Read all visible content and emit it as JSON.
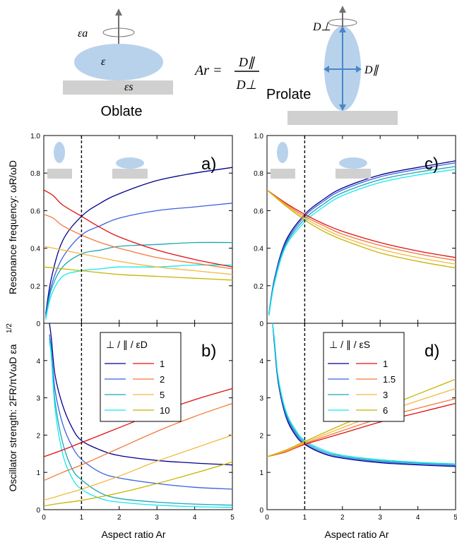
{
  "colors": {
    "spheroid": "#b8d2ec",
    "substrate": "#d0d0d0",
    "arrow": "#4a86c8",
    "axis": "#000000",
    "perp": [
      "#00008b",
      "#3a60e0",
      "#1aa6b4",
      "#16e8f0"
    ],
    "par": [
      "#e01010",
      "#f37838",
      "#f5b840",
      "#c8b400"
    ]
  },
  "schematic": {
    "oblate": {
      "label": "Oblate",
      "eps_a": "εa",
      "eps": "ε",
      "eps_s": "εs"
    },
    "prolate": {
      "label": "Prolate",
      "d_perp": "D⊥",
      "d_par": "D∥"
    },
    "equation": {
      "lhs": "Ar =",
      "numerator": "D∥",
      "denominator": "D⊥"
    }
  },
  "axes": {
    "top_ylabel": "Resonance frequency: ωR/ωD",
    "bottom_ylabel": "Oscillator strength: 2FR/πVωD εa",
    "bottom_ylabel_sup": "1/2",
    "xlabel": "Aspect ratio Ar",
    "top_yticks": [
      "0",
      "0.2",
      "0.4",
      "0.6",
      "0.8",
      "1.0"
    ],
    "bottom_yticks": [
      "0",
      "1",
      "2",
      "3",
      "4"
    ],
    "xticks": [
      "0",
      "1",
      "2",
      "3",
      "4",
      "5"
    ]
  },
  "legend_b": {
    "title": "⊥ / ∥ / εD",
    "entries": [
      "1",
      "2",
      "5",
      "10"
    ]
  },
  "legend_d": {
    "title": "⊥ / ∥ / εS",
    "entries": [
      "1",
      "1.5",
      "3",
      "6"
    ]
  },
  "chart_data": [
    {
      "panel": "a)",
      "type": "line",
      "xlim": [
        0,
        5
      ],
      "ylim": [
        0,
        1.0
      ],
      "vline_x": 1,
      "series": [
        {
          "group": "perp",
          "idx": 0,
          "x": [
            0.05,
            0.2,
            0.5,
            1,
            1.5,
            2,
            3,
            4,
            5
          ],
          "y": [
            0.05,
            0.24,
            0.44,
            0.57,
            0.64,
            0.69,
            0.76,
            0.8,
            0.83
          ]
        },
        {
          "group": "perp",
          "idx": 1,
          "x": [
            0.05,
            0.2,
            0.5,
            1,
            1.5,
            2,
            3,
            4,
            5
          ],
          "y": [
            0.04,
            0.2,
            0.35,
            0.47,
            0.52,
            0.56,
            0.6,
            0.62,
            0.64
          ]
        },
        {
          "group": "perp",
          "idx": 2,
          "x": [
            0.05,
            0.2,
            0.5,
            1,
            1.5,
            2,
            3,
            4,
            5
          ],
          "y": [
            0.03,
            0.18,
            0.3,
            0.37,
            0.39,
            0.41,
            0.42,
            0.43,
            0.43
          ]
        },
        {
          "group": "perp",
          "idx": 3,
          "x": [
            0.05,
            0.2,
            0.5,
            1,
            1.5,
            2,
            3,
            4,
            5
          ],
          "y": [
            0.02,
            0.15,
            0.25,
            0.28,
            0.29,
            0.3,
            0.3,
            0.31,
            0.31
          ]
        },
        {
          "group": "par",
          "idx": 0,
          "x": [
            0,
            0.25,
            0.5,
            1,
            1.5,
            2,
            3,
            4,
            5
          ],
          "y": [
            0.71,
            0.68,
            0.63,
            0.57,
            0.51,
            0.46,
            0.39,
            0.34,
            0.3
          ]
        },
        {
          "group": "par",
          "idx": 1,
          "x": [
            0,
            0.25,
            0.5,
            1,
            1.5,
            2,
            3,
            4,
            5
          ],
          "y": [
            0.58,
            0.56,
            0.52,
            0.47,
            0.43,
            0.4,
            0.35,
            0.32,
            0.29
          ]
        },
        {
          "group": "par",
          "idx": 2,
          "x": [
            0,
            0.5,
            1,
            2,
            3,
            4,
            5
          ],
          "y": [
            0.41,
            0.39,
            0.37,
            0.33,
            0.3,
            0.28,
            0.26
          ]
        },
        {
          "group": "par",
          "idx": 3,
          "x": [
            0,
            1,
            2,
            3,
            4,
            5
          ],
          "y": [
            0.3,
            0.28,
            0.26,
            0.25,
            0.24,
            0.23
          ]
        }
      ]
    },
    {
      "panel": "b)",
      "type": "line",
      "xlim": [
        0,
        5
      ],
      "ylim": [
        0,
        5
      ],
      "vline_x": 1,
      "series": [
        {
          "group": "perp",
          "idx": 0,
          "x": [
            0.15,
            0.2,
            0.3,
            0.5,
            0.75,
            1,
            1.5,
            2,
            3,
            4,
            5
          ],
          "y": [
            5.0,
            4.6,
            3.6,
            2.8,
            2.2,
            1.85,
            1.6,
            1.45,
            1.32,
            1.25,
            1.2
          ]
        },
        {
          "group": "perp",
          "idx": 1,
          "x": [
            0.15,
            0.2,
            0.3,
            0.5,
            0.75,
            1,
            1.5,
            2,
            3,
            4,
            5
          ],
          "y": [
            4.7,
            4.3,
            3.2,
            2.3,
            1.7,
            1.35,
            1.0,
            0.85,
            0.7,
            0.6,
            0.55
          ]
        },
        {
          "group": "perp",
          "idx": 2,
          "x": [
            0.15,
            0.2,
            0.3,
            0.5,
            0.75,
            1,
            1.5,
            2,
            3,
            4,
            5
          ],
          "y": [
            4.6,
            4.2,
            2.9,
            1.8,
            1.1,
            0.8,
            0.45,
            0.3,
            0.2,
            0.15,
            0.12
          ]
        },
        {
          "group": "perp",
          "idx": 3,
          "x": [
            0.15,
            0.2,
            0.3,
            0.5,
            0.75,
            1,
            1.5,
            2,
            3,
            4,
            5
          ],
          "y": [
            4.5,
            4.1,
            2.7,
            1.5,
            0.85,
            0.55,
            0.3,
            0.2,
            0.12,
            0.08,
            0.06
          ]
        },
        {
          "group": "par",
          "idx": 0,
          "x": [
            0,
            0.5,
            1,
            2,
            3,
            4,
            5
          ],
          "y": [
            1.42,
            1.6,
            1.8,
            2.2,
            2.6,
            2.95,
            3.25
          ]
        },
        {
          "group": "par",
          "idx": 1,
          "x": [
            0,
            0.5,
            1,
            2,
            3,
            4,
            5
          ],
          "y": [
            0.78,
            1.0,
            1.2,
            1.65,
            2.1,
            2.5,
            2.85
          ]
        },
        {
          "group": "par",
          "idx": 2,
          "x": [
            0,
            0.5,
            1,
            2,
            3,
            4,
            5
          ],
          "y": [
            0.25,
            0.4,
            0.55,
            0.9,
            1.3,
            1.65,
            2.0
          ]
        },
        {
          "group": "par",
          "idx": 3,
          "x": [
            0,
            0.5,
            1,
            2,
            3,
            4,
            5
          ],
          "y": [
            0.1,
            0.18,
            0.25,
            0.45,
            0.7,
            0.98,
            1.28
          ]
        }
      ]
    },
    {
      "panel": "c)",
      "type": "line",
      "xlim": [
        0,
        5
      ],
      "ylim": [
        0,
        1.0
      ],
      "vline_x": 1,
      "series": [
        {
          "group": "perp",
          "idx": 0,
          "x": [
            0.05,
            0.2,
            0.5,
            1,
            1.5,
            2,
            3,
            4,
            5
          ],
          "y": [
            0.05,
            0.24,
            0.44,
            0.58,
            0.66,
            0.72,
            0.79,
            0.83,
            0.865
          ]
        },
        {
          "group": "perp",
          "idx": 1,
          "x": [
            0.05,
            0.2,
            0.5,
            1,
            1.5,
            2,
            3,
            4,
            5
          ],
          "y": [
            0.05,
            0.235,
            0.43,
            0.57,
            0.65,
            0.71,
            0.78,
            0.82,
            0.855
          ]
        },
        {
          "group": "perp",
          "idx": 2,
          "x": [
            0.05,
            0.2,
            0.5,
            1,
            1.5,
            2,
            3,
            4,
            5
          ],
          "y": [
            0.045,
            0.225,
            0.42,
            0.555,
            0.635,
            0.695,
            0.765,
            0.805,
            0.835
          ]
        },
        {
          "group": "perp",
          "idx": 3,
          "x": [
            0.05,
            0.2,
            0.5,
            1,
            1.5,
            2,
            3,
            4,
            5
          ],
          "y": [
            0.04,
            0.215,
            0.41,
            0.54,
            0.62,
            0.68,
            0.75,
            0.79,
            0.82
          ]
        },
        {
          "group": "par",
          "idx": 0,
          "x": [
            0,
            0.5,
            1,
            1.5,
            2,
            3,
            4,
            5
          ],
          "y": [
            0.71,
            0.64,
            0.58,
            0.53,
            0.49,
            0.43,
            0.385,
            0.35
          ]
        },
        {
          "group": "par",
          "idx": 1,
          "x": [
            0,
            0.5,
            1,
            1.5,
            2,
            3,
            4,
            5
          ],
          "y": [
            0.71,
            0.635,
            0.57,
            0.52,
            0.475,
            0.415,
            0.37,
            0.335
          ]
        },
        {
          "group": "par",
          "idx": 2,
          "x": [
            0,
            0.5,
            1,
            1.5,
            2,
            3,
            4,
            5
          ],
          "y": [
            0.71,
            0.63,
            0.56,
            0.505,
            0.46,
            0.395,
            0.35,
            0.315
          ]
        },
        {
          "group": "par",
          "idx": 3,
          "x": [
            0,
            0.5,
            1,
            1.5,
            2,
            3,
            4,
            5
          ],
          "y": [
            0.71,
            0.625,
            0.55,
            0.49,
            0.445,
            0.375,
            0.33,
            0.295
          ]
        }
      ]
    },
    {
      "panel": "d)",
      "type": "line",
      "xlim": [
        0,
        5
      ],
      "ylim": [
        0,
        5
      ],
      "vline_x": 1,
      "series": [
        {
          "group": "perp",
          "idx": 0,
          "x": [
            0.15,
            0.2,
            0.3,
            0.5,
            0.75,
            1,
            1.5,
            2,
            3,
            4,
            5
          ],
          "y": [
            5.0,
            4.4,
            3.4,
            2.5,
            2.0,
            1.75,
            1.5,
            1.38,
            1.26,
            1.2,
            1.16
          ]
        },
        {
          "group": "perp",
          "idx": 1,
          "x": [
            0.15,
            0.2,
            0.3,
            0.5,
            0.75,
            1,
            1.5,
            2,
            3,
            4,
            5
          ],
          "y": [
            5.0,
            4.45,
            3.45,
            2.55,
            2.05,
            1.78,
            1.52,
            1.4,
            1.28,
            1.22,
            1.18
          ]
        },
        {
          "group": "perp",
          "idx": 2,
          "x": [
            0.15,
            0.2,
            0.3,
            0.5,
            0.75,
            1,
            1.5,
            2,
            3,
            4,
            5
          ],
          "y": [
            5.0,
            4.5,
            3.5,
            2.6,
            2.1,
            1.82,
            1.56,
            1.43,
            1.31,
            1.25,
            1.21
          ]
        },
        {
          "group": "perp",
          "idx": 3,
          "x": [
            0.15,
            0.2,
            0.3,
            0.5,
            0.75,
            1,
            1.5,
            2,
            3,
            4,
            5
          ],
          "y": [
            5.0,
            4.55,
            3.55,
            2.65,
            2.15,
            1.86,
            1.6,
            1.46,
            1.34,
            1.27,
            1.23
          ]
        },
        {
          "group": "par",
          "idx": 0,
          "x": [
            0,
            0.5,
            1,
            2,
            3,
            4,
            5
          ],
          "y": [
            1.42,
            1.55,
            1.75,
            2.05,
            2.35,
            2.6,
            2.85
          ]
        },
        {
          "group": "par",
          "idx": 1,
          "x": [
            0,
            0.5,
            1,
            2,
            3,
            4,
            5
          ],
          "y": [
            1.42,
            1.56,
            1.77,
            2.12,
            2.45,
            2.72,
            2.98
          ]
        },
        {
          "group": "par",
          "idx": 2,
          "x": [
            0,
            0.5,
            1,
            2,
            3,
            4,
            5
          ],
          "y": [
            1.42,
            1.58,
            1.8,
            2.2,
            2.58,
            2.92,
            3.25
          ]
        },
        {
          "group": "par",
          "idx": 3,
          "x": [
            0,
            0.5,
            1,
            2,
            3,
            4,
            5
          ],
          "y": [
            1.42,
            1.6,
            1.83,
            2.28,
            2.7,
            3.1,
            3.5
          ]
        }
      ]
    }
  ]
}
